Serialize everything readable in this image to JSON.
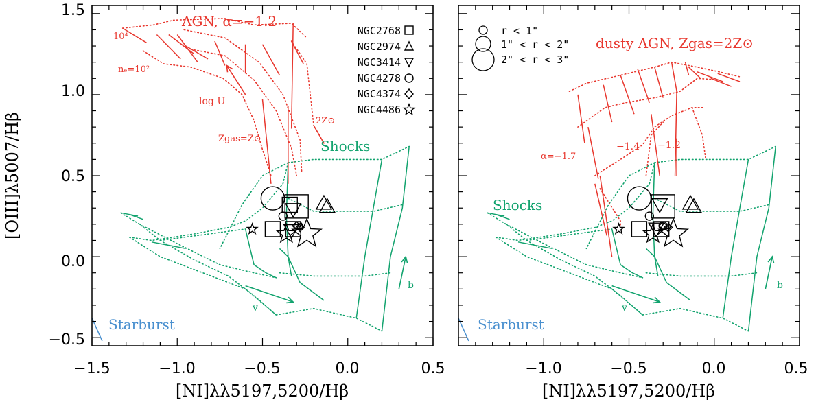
{
  "colors": {
    "agn": "#e8372e",
    "shock": "#12a36e",
    "starburst": "#4a90cf",
    "axis": "#000000"
  },
  "chart_data": [
    {
      "type": "line",
      "panel": "left",
      "xlabel": "[NI]λλ5197,5200/Hβ",
      "ylabel": "[OIII]λ5007/Hβ",
      "xlim": [
        -1.5,
        0.5
      ],
      "ylim": [
        -0.55,
        1.55
      ],
      "xticks": [
        -1.5,
        -1.0,
        -0.5,
        0.0,
        0.5
      ],
      "xtick_labels": [
        "−1.5",
        "−1.0",
        "−0.5",
        "0.0",
        "0.5"
      ],
      "yticks": [
        -0.5,
        0.0,
        0.5,
        1.0,
        1.5
      ],
      "ytick_labels": [
        "−0.5",
        "0.0",
        "0.5",
        "1.0",
        "1.5"
      ],
      "annotations": {
        "title": "AGN, α=−1.2",
        "ne4": "10⁴",
        "ne2": "nₑ=10²",
        "logU": "log U",
        "zsun": "Zgas=Z⊙",
        "z2": "2Z⊙",
        "shocks": "Shocks",
        "starburst": "Starburst",
        "v": "v",
        "b": "b"
      },
      "legend": [
        "NGC2768",
        "NGC2974",
        "NGC3414",
        "NGC4278",
        "NGC4374",
        "NGC4486"
      ],
      "legend_placement": "top-right",
      "grid": false
    },
    {
      "type": "line",
      "panel": "right",
      "xlabel": "[NI]λλ5197,5200/Hβ",
      "xlim": [
        -1.5,
        0.5
      ],
      "ylim": [
        -0.55,
        1.55
      ],
      "xticks": [
        -1.0,
        -0.5,
        0.0,
        0.5
      ],
      "xtick_labels": [
        "−1.0",
        "−0.5",
        "0.0",
        "0.5"
      ],
      "annotations": {
        "title": "dusty AGN, Zgas=2Z⊙",
        "a17": "α=−1.7",
        "a14": "−1.4",
        "a12": "−1.2",
        "shocks": "Shocks",
        "starburst": "Starburst",
        "v": "v",
        "b": "b"
      },
      "legend": [
        "r < 1\"",
        "1\" < r < 2\"",
        "2\" < r < 3\""
      ],
      "legend_placement": "top-left",
      "grid": false
    }
  ],
  "model_grids": {
    "agn_left": {
      "solid": [
        [
          [
            -1.32,
            1.41
          ],
          [
            -1.18,
            1.32
          ]
        ],
        [
          [
            -1.12,
            1.37
          ],
          [
            -0.98,
            1.22
          ]
        ],
        [
          [
            -1.05,
            1.37
          ],
          [
            -0.9,
            1.25
          ]
        ],
        [
          [
            -1.0,
            1.37
          ],
          [
            -0.88,
            1.2
          ]
        ],
        [
          [
            -0.95,
            1.3
          ],
          [
            -0.82,
            1.22
          ]
        ],
        [
          [
            -0.78,
            1.33
          ],
          [
            -0.72,
            1.18
          ]
        ],
        [
          [
            -0.6,
            1.31
          ],
          [
            -0.6,
            1.13
          ]
        ],
        [
          [
            -0.5,
            1.31
          ],
          [
            -0.4,
            1.12
          ]
        ],
        [
          [
            -0.33,
            1.33
          ],
          [
            -0.26,
            1.19
          ]
        ],
        [
          [
            -0.32,
            1.44
          ],
          [
            -0.33,
            0.79
          ]
        ],
        [
          [
            -0.35,
            0.93
          ],
          [
            -0.35,
            0.45
          ]
        ],
        [
          [
            -0.5,
            0.97
          ],
          [
            -0.45,
            0.45
          ]
        ],
        [
          [
            -0.2,
            0.81
          ],
          [
            -0.14,
            0.7
          ]
        ]
      ],
      "dotted": [
        [
          [
            -1.32,
            1.41
          ],
          [
            -1.14,
            1.43
          ],
          [
            -1.02,
            1.46
          ],
          [
            -0.72,
            1.47
          ],
          [
            -0.55,
            1.43
          ],
          [
            -0.33,
            1.44
          ],
          [
            -0.24,
            1.35
          ]
        ],
        [
          [
            -1.2,
            1.27
          ],
          [
            -1.08,
            1.19
          ],
          [
            -0.92,
            1.17
          ],
          [
            -0.73,
            1.1
          ],
          [
            -0.62,
            1.0
          ],
          [
            -0.55,
            0.84
          ],
          [
            -0.5,
            0.66
          ],
          [
            -0.45,
            0.5
          ]
        ],
        [
          [
            -0.92,
            1.28
          ],
          [
            -0.72,
            1.24
          ],
          [
            -0.55,
            1.09
          ],
          [
            -0.42,
            0.9
          ],
          [
            -0.33,
            0.67
          ],
          [
            -0.3,
            0.5
          ]
        ],
        [
          [
            -0.96,
            1.4
          ],
          [
            -0.72,
            1.35
          ],
          [
            -0.52,
            1.2
          ],
          [
            -0.38,
            1.0
          ],
          [
            -0.28,
            0.72
          ],
          [
            -0.27,
            0.52
          ]
        ],
        [
          [
            -0.33,
            1.33
          ],
          [
            -0.24,
            1.19
          ],
          [
            -0.2,
            0.81
          ],
          [
            -0.14,
            0.7
          ]
        ]
      ],
      "arrows": [
        {
          "from": [
            -0.6,
            1.0
          ],
          "to": [
            -0.71,
            1.18
          ]
        }
      ]
    },
    "agn_right": {
      "solid": [
        [
          [
            -0.8,
            1.0
          ],
          [
            -0.76,
            0.7
          ]
        ],
        [
          [
            -0.74,
            0.8
          ],
          [
            -0.68,
            0.48
          ]
        ],
        [
          [
            -0.7,
            0.45
          ],
          [
            -0.63,
            0.13
          ]
        ],
        [
          [
            -0.67,
            0.5
          ],
          [
            -0.6,
            0.0
          ]
        ],
        [
          [
            -0.65,
            1.06
          ],
          [
            -0.6,
            0.83
          ]
        ],
        [
          [
            -0.55,
            1.12
          ],
          [
            -0.47,
            0.88
          ]
        ],
        [
          [
            -0.45,
            1.16
          ],
          [
            -0.38,
            0.95
          ]
        ],
        [
          [
            -0.35,
            1.17
          ],
          [
            -0.3,
            0.98
          ]
        ],
        [
          [
            -0.25,
            1.2
          ],
          [
            -0.22,
            1.02
          ]
        ],
        [
          [
            -0.17,
            1.2
          ],
          [
            -0.15,
            1.12
          ]
        ],
        [
          [
            -0.15,
            1.17
          ],
          [
            -0.08,
            1.1
          ]
        ],
        [
          [
            -0.1,
            1.14
          ],
          [
            0.05,
            1.08
          ]
        ],
        [
          [
            -0.02,
            1.1
          ],
          [
            0.1,
            1.05
          ]
        ],
        [
          [
            0.02,
            1.13
          ],
          [
            0.15,
            1.08
          ]
        ],
        [
          [
            -0.22,
            1.02
          ],
          [
            -0.23,
            0.5
          ]
        ],
        [
          [
            -0.37,
            0.88
          ],
          [
            -0.32,
            0.5
          ]
        ],
        [
          [
            -0.22,
            0.73
          ],
          [
            -0.22,
            0.5
          ]
        ]
      ],
      "dotted": [
        [
          [
            -0.85,
            1.02
          ],
          [
            -0.75,
            1.07
          ],
          [
            -0.55,
            1.12
          ],
          [
            -0.35,
            1.17
          ],
          [
            -0.25,
            1.2
          ],
          [
            -0.1,
            1.17
          ],
          [
            0.03,
            1.14
          ],
          [
            0.15,
            1.11
          ]
        ],
        [
          [
            -0.8,
            0.8
          ],
          [
            -0.64,
            0.92
          ],
          [
            -0.52,
            0.95
          ],
          [
            -0.35,
            0.98
          ],
          [
            -0.2,
            1.02
          ],
          [
            -0.1,
            1.1
          ],
          [
            0.03,
            1.09
          ]
        ],
        [
          [
            -0.7,
            0.5
          ],
          [
            -0.55,
            0.6
          ],
          [
            -0.42,
            0.69
          ],
          [
            -0.35,
            0.8
          ],
          [
            -0.25,
            0.87
          ],
          [
            -0.13,
            0.92
          ],
          [
            -0.06,
            0.92
          ]
        ],
        [
          [
            -0.67,
            0.42
          ],
          [
            -0.55,
            0.22
          ],
          [
            -0.55,
            0.18
          ]
        ],
        [
          [
            -0.4,
            0.5
          ],
          [
            -0.37,
            0.75
          ],
          [
            -0.3,
            0.83
          ]
        ],
        [
          [
            -0.13,
            0.92
          ],
          [
            -0.07,
            0.75
          ],
          [
            -0.05,
            0.6
          ]
        ]
      ]
    },
    "shock": {
      "solid": [
        [
          [
            -1.33,
            0.27
          ],
          [
            -1.23,
            0.25
          ]
        ],
        [
          [
            -1.28,
            0.26
          ],
          [
            -1.2,
            0.23
          ]
        ],
        [
          [
            -1.15,
            0.09
          ],
          [
            -0.95,
            0.05
          ]
        ],
        [
          [
            -0.35,
            0.58
          ],
          [
            -0.36,
            0.25
          ],
          [
            -0.35,
            0.0
          ],
          [
            -0.33,
            -0.12
          ]
        ],
        [
          [
            -0.6,
            0.17
          ],
          [
            -0.55,
            -0.05
          ],
          [
            -0.48,
            -0.1
          ],
          [
            -0.42,
            -0.13
          ]
        ],
        [
          [
            -0.4,
            0.05
          ],
          [
            -0.35,
            0.0
          ],
          [
            -0.28,
            -0.16
          ],
          [
            -0.14,
            -0.27
          ]
        ],
        [
          [
            0.2,
            0.6
          ],
          [
            0.15,
            0.3
          ],
          [
            0.1,
            0.0
          ],
          [
            0.05,
            -0.38
          ]
        ],
        [
          [
            0.36,
            0.68
          ],
          [
            0.32,
            0.3
          ],
          [
            0.25,
            0.0
          ],
          [
            0.2,
            -0.46
          ]
        ]
      ],
      "dotted": [
        [
          [
            -1.33,
            0.27
          ],
          [
            -1.22,
            0.2
          ],
          [
            -1.1,
            0.1
          ],
          [
            -0.9,
            -0.02
          ],
          [
            -0.7,
            -0.12
          ],
          [
            -0.55,
            -0.24
          ],
          [
            -0.42,
            -0.36
          ]
        ],
        [
          [
            -1.22,
            0.2
          ],
          [
            -1.0,
            0.08
          ],
          [
            -0.75,
            -0.05
          ],
          [
            -0.55,
            -0.1
          ],
          [
            -0.42,
            -0.13
          ]
        ],
        [
          [
            -1.28,
            0.12
          ],
          [
            -1.15,
            0.1
          ],
          [
            -0.9,
            0.14
          ],
          [
            -0.7,
            0.18
          ],
          [
            -0.6,
            0.22
          ],
          [
            -0.5,
            0.3
          ],
          [
            -0.38,
            0.45
          ],
          [
            -0.35,
            0.58
          ]
        ],
        [
          [
            -1.28,
            0.12
          ],
          [
            -1.1,
            0.0
          ],
          [
            -0.8,
            -0.12
          ],
          [
            -0.6,
            -0.2
          ],
          [
            -0.42,
            -0.36
          ]
        ],
        [
          [
            -0.35,
            0.58
          ],
          [
            -0.2,
            0.6
          ],
          [
            0.2,
            0.6
          ],
          [
            0.36,
            0.68
          ]
        ],
        [
          [
            -0.35,
            0.36
          ],
          [
            -0.2,
            0.28
          ],
          [
            0.15,
            0.28
          ],
          [
            0.32,
            0.32
          ]
        ],
        [
          [
            -0.4,
            -0.1
          ],
          [
            -0.2,
            -0.12
          ],
          [
            0.1,
            -0.12
          ],
          [
            0.25,
            -0.1
          ]
        ],
        [
          [
            -0.42,
            -0.36
          ],
          [
            -0.2,
            -0.32
          ],
          [
            0.05,
            -0.38
          ],
          [
            0.2,
            -0.46
          ]
        ],
        [
          [
            -1.1,
            0.1
          ],
          [
            -0.6,
            0.17
          ]
        ],
        [
          [
            -0.35,
            0.58
          ],
          [
            -0.5,
            0.5
          ],
          [
            -0.62,
            0.32
          ],
          [
            -0.75,
            0.05
          ]
        ]
      ],
      "arrows": [
        {
          "from": [
            -0.6,
            -0.18
          ],
          "to": [
            -0.32,
            -0.28
          ]
        },
        {
          "from": [
            0.3,
            -0.2
          ],
          "to": [
            0.34,
            0.0
          ]
        }
      ]
    },
    "starburst": [
      [
        [
          -1.5,
          -0.38
        ],
        [
          -1.44,
          -0.52
        ]
      ]
    ]
  },
  "points": {
    "left": [
      {
        "shape": "circle",
        "x": -0.44,
        "y": 0.36,
        "size": "large"
      },
      {
        "shape": "square",
        "x": -0.3,
        "y": 0.31,
        "size": "large"
      },
      {
        "shape": "square",
        "x": -0.34,
        "y": 0.32,
        "size": "medium"
      },
      {
        "shape": "square",
        "x": -0.44,
        "y": 0.17,
        "size": "medium"
      },
      {
        "shape": "square",
        "x": -0.32,
        "y": 0.17,
        "size": "medium"
      },
      {
        "shape": "triangle-down",
        "x": -0.32,
        "y": 0.29,
        "size": "medium"
      },
      {
        "shape": "triangle-down",
        "x": -0.33,
        "y": 0.16,
        "size": "medium"
      },
      {
        "shape": "triangle-up",
        "x": -0.14,
        "y": 0.33,
        "size": "medium"
      },
      {
        "shape": "triangle-up",
        "x": -0.12,
        "y": 0.31,
        "size": "medium"
      },
      {
        "shape": "circle",
        "x": -0.38,
        "y": 0.25,
        "size": "small"
      },
      {
        "shape": "diamond",
        "x": -0.3,
        "y": 0.19,
        "size": "small"
      },
      {
        "shape": "diamond",
        "x": -0.28,
        "y": 0.18,
        "size": "small"
      },
      {
        "shape": "circle",
        "x": -0.29,
        "y": 0.19,
        "size": "small"
      },
      {
        "shape": "star",
        "x": -0.56,
        "y": 0.17,
        "size": "small"
      },
      {
        "shape": "star",
        "x": -0.36,
        "y": 0.14,
        "size": "medium"
      },
      {
        "shape": "star",
        "x": -0.24,
        "y": 0.14,
        "size": "large"
      }
    ],
    "right": [
      {
        "shape": "circle",
        "x": -0.44,
        "y": 0.36,
        "size": "large"
      },
      {
        "shape": "square",
        "x": -0.3,
        "y": 0.31,
        "size": "large"
      },
      {
        "shape": "square",
        "x": -0.44,
        "y": 0.17,
        "size": "medium"
      },
      {
        "shape": "square",
        "x": -0.31,
        "y": 0.17,
        "size": "medium"
      },
      {
        "shape": "triangle-down",
        "x": -0.32,
        "y": 0.32,
        "size": "medium"
      },
      {
        "shape": "triangle-down",
        "x": -0.34,
        "y": 0.17,
        "size": "medium"
      },
      {
        "shape": "triangle-up",
        "x": -0.14,
        "y": 0.33,
        "size": "medium"
      },
      {
        "shape": "triangle-up",
        "x": -0.12,
        "y": 0.31,
        "size": "medium"
      },
      {
        "shape": "circle",
        "x": -0.38,
        "y": 0.25,
        "size": "small"
      },
      {
        "shape": "diamond",
        "x": -0.3,
        "y": 0.19,
        "size": "small"
      },
      {
        "shape": "diamond",
        "x": -0.27,
        "y": 0.18,
        "size": "small"
      },
      {
        "shape": "circle",
        "x": -0.3,
        "y": 0.19,
        "size": "small"
      },
      {
        "shape": "star",
        "x": -0.56,
        "y": 0.17,
        "size": "small"
      },
      {
        "shape": "star",
        "x": -0.36,
        "y": 0.14,
        "size": "medium"
      },
      {
        "shape": "star",
        "x": -0.24,
        "y": 0.14,
        "size": "large"
      }
    ]
  }
}
